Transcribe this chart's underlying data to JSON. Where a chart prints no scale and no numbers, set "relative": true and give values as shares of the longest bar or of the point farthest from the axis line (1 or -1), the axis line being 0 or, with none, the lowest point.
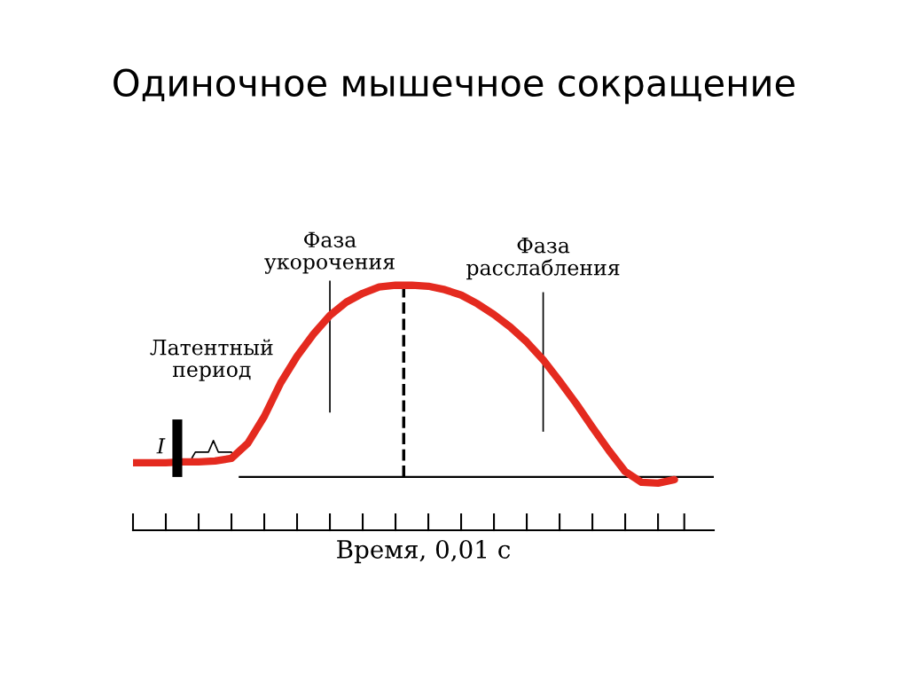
{
  "chart_data": {
    "type": "line",
    "title": "Одиночное мышечное сокращение",
    "xlabel": "Время, 0,01 с",
    "relative": true,
    "categories": [
      null,
      null,
      null,
      null,
      null,
      null,
      null,
      null,
      null,
      null,
      null,
      null,
      null,
      null,
      null,
      null,
      null,
      null,
      null,
      null,
      null,
      null,
      null,
      null,
      null,
      null,
      null,
      null,
      null,
      null,
      null,
      null,
      null,
      null
    ],
    "series": [
      {
        "color": "#e42a1f",
        "values": [
          0.074,
          0.074,
          0.074,
          0.079,
          0.079,
          0.083,
          0.097,
          0.176,
          0.315,
          0.491,
          0.63,
          0.745,
          0.843,
          0.912,
          0.958,
          0.991,
          1,
          1,
          0.995,
          0.977,
          0.949,
          0.903,
          0.847,
          0.782,
          0.704,
          0.611,
          0.5,
          0.384,
          0.259,
          0.139,
          0.028,
          -0.028,
          -0.032,
          -0.014
        ]
      }
    ],
    "annotations": [
      "Латентный\nпериод",
      "Фаза\nукорочения",
      "Фаза\nрасслабления",
      "I"
    ],
    "grid": false,
    "legend": false,
    "marker": "none",
    "line_style": "solid"
  }
}
